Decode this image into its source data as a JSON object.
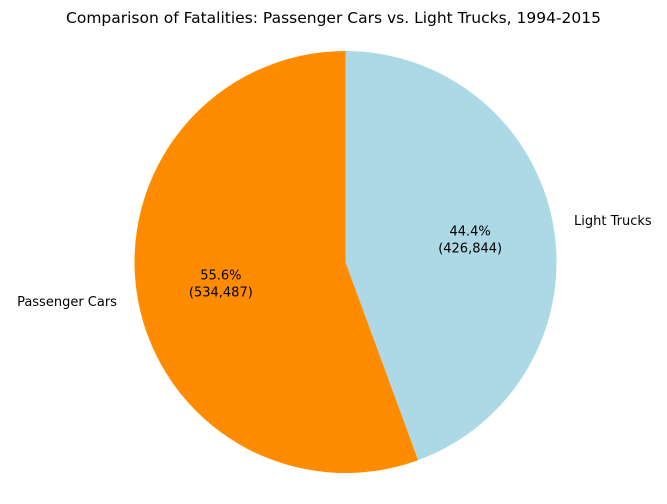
{
  "chart_data": {
    "type": "pie",
    "title": "Comparison of Fatalities: Passenger Cars vs. Light Trucks, 1994-2015",
    "categories": [
      "Passenger Cars",
      "Light Trucks"
    ],
    "values": [
      534487,
      426844
    ],
    "percent_labels": [
      "55.6%",
      "44.4%"
    ],
    "value_labels": [
      "(534,487)",
      "(426,844)"
    ],
    "colors": [
      "#ff8c00",
      "#add8e6"
    ],
    "start_angle_deg": 90,
    "direction": "counterclockwise",
    "legend": false
  }
}
